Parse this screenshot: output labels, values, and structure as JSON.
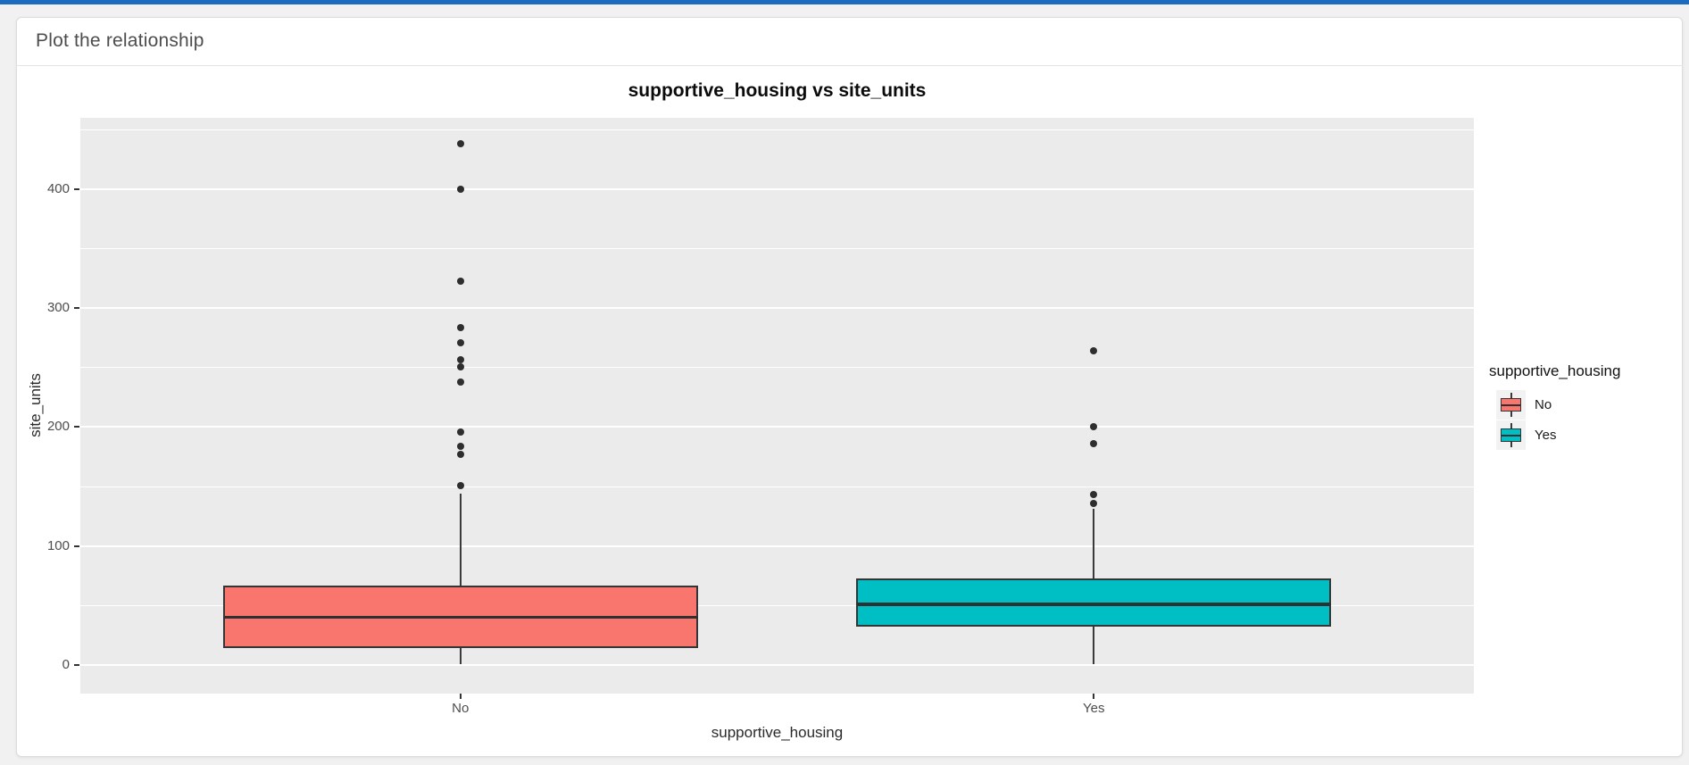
{
  "header": {
    "title": "Plot the relationship"
  },
  "colors": {
    "top_bar": "#1b6bc1",
    "page_bg": "#f1f1f2",
    "card_bg": "#ffffff",
    "card_border": "#dcdcdc",
    "header_text": "#4d4d4d"
  },
  "chart_data": {
    "type": "boxplot",
    "title": "supportive_housing vs site_units",
    "xlabel": "supportive_housing",
    "ylabel": "site_units",
    "categories": [
      "No",
      "Yes"
    ],
    "y_ticks": [
      0,
      100,
      200,
      300,
      400
    ],
    "ylim": [
      -24,
      460
    ],
    "grid": {
      "major": [
        0,
        100,
        200,
        300,
        400
      ],
      "minor": [
        50,
        150,
        250,
        350,
        450
      ]
    },
    "legend": {
      "title": "supportive_housing",
      "position": "right",
      "entries": [
        {
          "label": "No",
          "color": "#F8766D"
        },
        {
          "label": "Yes",
          "color": "#00BFC4"
        }
      ]
    },
    "series": [
      {
        "category": "No",
        "fill": "#F8766D",
        "min": 1,
        "q1": 14,
        "median": 40,
        "q3": 67,
        "whisker_high": 144,
        "outliers": [
          151,
          177,
          184,
          196,
          238,
          251,
          257,
          271,
          284,
          323,
          400,
          438
        ]
      },
      {
        "category": "Yes",
        "fill": "#00BFC4",
        "min": 1,
        "q1": 32,
        "median": 51,
        "q3": 73,
        "whisker_high": 131,
        "outliers": [
          136,
          143,
          186,
          200,
          264
        ]
      }
    ],
    "style": {
      "panel_bg": "#EBEBEB",
      "grid_color": "#FFFFFF",
      "stroke": "#333333",
      "tick_label_color": "#4D4D4D",
      "legend_key_bg": "#F2F2F2"
    }
  }
}
